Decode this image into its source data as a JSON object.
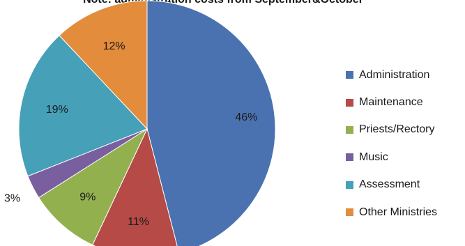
{
  "chart_data": {
    "type": "pie",
    "title": "Note: administration costs from September&October",
    "categories": [
      "Administration",
      "Maintenance",
      "Priests/Rectory",
      "Music",
      "Assessment",
      "Other Ministries"
    ],
    "values": [
      46,
      11,
      9,
      3,
      19,
      12
    ],
    "value_labels": [
      "46%",
      "11%",
      "9%",
      "3%",
      "19%",
      "12%"
    ],
    "colors": [
      "#4a72b0",
      "#b54a47",
      "#93b04f",
      "#7a5fa0",
      "#45a0b8",
      "#e38c3c"
    ],
    "legend_position": "right"
  }
}
